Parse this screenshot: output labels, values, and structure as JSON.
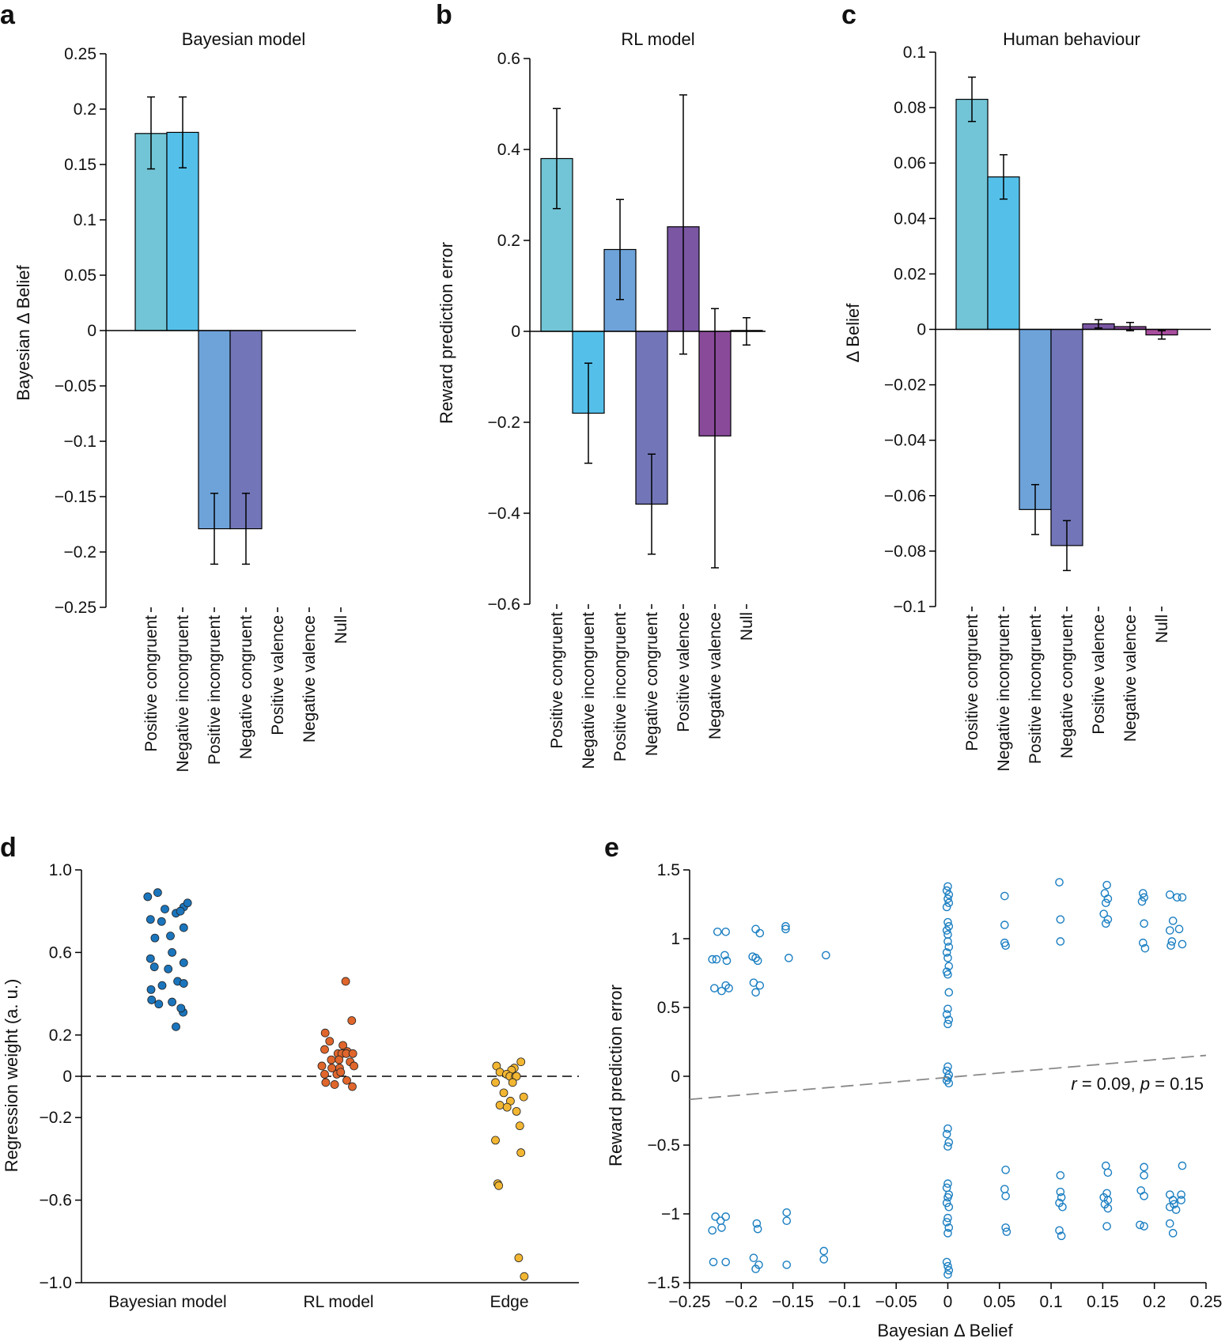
{
  "colors": {
    "positive_congruent": "#72c5d6",
    "negative_incongruent": "#54c0ea",
    "positive_incongruent": "#6ea3da",
    "negative_congruent": "#7276b8",
    "positive_valence": "#7a56a3",
    "negative_valence": "#8a4a9a",
    "null": "#a94e9e",
    "bayes_dots": "#1b75bc",
    "rl_dots": "#e0662c",
    "edge_dots": "#f2b632",
    "scatter_points": "#1b7fc2",
    "fit_line": "#888888"
  },
  "chart_data": [
    {
      "id": "a",
      "panel_label": "a",
      "type": "bar",
      "title": "Bayesian model",
      "ylabel": "Bayesian Δ Belief",
      "ylim": [
        -0.25,
        0.25
      ],
      "yticks": [
        0.25,
        0.2,
        0.15,
        0.1,
        0.05,
        0,
        -0.05,
        -0.1,
        -0.15,
        -0.2,
        -0.25
      ],
      "ytick_labels": [
        "0.25",
        "0.2",
        "0.15",
        "0.1",
        "0.05",
        "0",
        "−0.05",
        "−0.1",
        "−0.15",
        "−0.2",
        "−0.25"
      ],
      "categories": [
        "Positive congruent",
        "Negative incongruent",
        "Positive incongruent",
        "Negative congruent",
        "Positive valence",
        "Negative valence",
        "Null"
      ],
      "values": [
        0.178,
        0.179,
        -0.179,
        -0.179,
        0,
        0,
        0
      ],
      "err_low": [
        0.146,
        0.147,
        -0.211,
        -0.211,
        0,
        0,
        0
      ],
      "err_high": [
        0.211,
        0.211,
        -0.147,
        -0.147,
        0,
        0,
        0
      ]
    },
    {
      "id": "b",
      "panel_label": "b",
      "type": "bar",
      "title": "RL model",
      "ylabel": "Reward prediction error",
      "ylim": [
        -0.6,
        0.6
      ],
      "yticks": [
        0.6,
        0.4,
        0.2,
        0,
        -0.2,
        -0.4,
        -0.6
      ],
      "ytick_labels": [
        "0.6",
        "0.4",
        "0.2",
        "0",
        "−0.2",
        "−0.4",
        "−0.6"
      ],
      "categories": [
        "Positive congruent",
        "Negative incongruent",
        "Positive incongruent",
        "Negative congruent",
        "Positive valence",
        "Negative valence",
        "Null"
      ],
      "values": [
        0.38,
        -0.18,
        0.18,
        -0.38,
        0.23,
        -0.23,
        0.002
      ],
      "err_low": [
        0.27,
        -0.29,
        0.07,
        -0.49,
        -0.05,
        -0.52,
        -0.03
      ],
      "err_high": [
        0.49,
        -0.07,
        0.29,
        -0.27,
        0.52,
        0.05,
        0.03
      ]
    },
    {
      "id": "c",
      "panel_label": "c",
      "type": "bar",
      "title": "Human behaviour",
      "ylabel": "Δ Belief",
      "ylim": [
        -0.1,
        0.1
      ],
      "yticks": [
        0.1,
        0.08,
        0.06,
        0.04,
        0.02,
        0,
        -0.02,
        -0.04,
        -0.06,
        -0.08,
        -0.1
      ],
      "ytick_labels": [
        "0.1",
        "0.08",
        "0.06",
        "0.04",
        "0.02",
        "0",
        "−0.02",
        "−0.04",
        "−0.06",
        "−0.08",
        "−0.1"
      ],
      "categories": [
        "Positive congruent",
        "Negative incongruent",
        "Positive incongruent",
        "Negative congruent",
        "Positive valence",
        "Negative valence",
        "Null"
      ],
      "values": [
        0.083,
        0.055,
        -0.065,
        -0.078,
        0.002,
        0.001,
        -0.002
      ],
      "err_low": [
        0.075,
        0.047,
        -0.074,
        -0.087,
        0.0005,
        -0.0005,
        -0.0035
      ],
      "err_high": [
        0.091,
        0.063,
        -0.056,
        -0.069,
        0.0035,
        0.0025,
        -0.0005
      ]
    },
    {
      "id": "d",
      "panel_label": "d",
      "type": "scatter",
      "title": "",
      "ylabel": "Regression weight (a. u.)",
      "ylim": [
        -1.0,
        1.0
      ],
      "yticks": [
        1.0,
        0.6,
        0.2,
        0,
        -0.2,
        -0.6,
        -1.0
      ],
      "ytick_labels": [
        "1.0",
        "0.6",
        "0.2",
        "0",
        "−0.2",
        "−0.6",
        "−1.0"
      ],
      "categories": [
        "Bayesian model",
        "RL model",
        "Edge"
      ],
      "series": [
        {
          "name": "Bayesian model",
          "points": [
            [
              -0.36,
              0.87
            ],
            [
              -0.18,
              0.89
            ],
            [
              -0.05,
              0.81
            ],
            [
              0.15,
              0.79
            ],
            [
              0.29,
              0.82
            ],
            [
              0.36,
              0.84
            ],
            [
              0.23,
              0.8
            ],
            [
              -0.31,
              0.76
            ],
            [
              -0.11,
              0.75
            ],
            [
              0.29,
              0.72
            ],
            [
              -0.23,
              0.67
            ],
            [
              0.05,
              0.68
            ],
            [
              -0.31,
              0.57
            ],
            [
              0.08,
              0.6
            ],
            [
              -0.24,
              0.53
            ],
            [
              0.29,
              0.55
            ],
            [
              0.01,
              0.52
            ],
            [
              -0.3,
              0.42
            ],
            [
              0.18,
              0.46
            ],
            [
              -0.1,
              0.44
            ],
            [
              0.29,
              0.45
            ],
            [
              -0.29,
              0.37
            ],
            [
              0.08,
              0.36
            ],
            [
              -0.16,
              0.35
            ],
            [
              0.28,
              0.31
            ],
            [
              0.24,
              0.33
            ],
            [
              0.15,
              0.24
            ]
          ]
        },
        {
          "name": "RL model",
          "points": [
            [
              0.13,
              0.46
            ],
            [
              -0.24,
              0.21
            ],
            [
              0.24,
              0.27
            ],
            [
              -0.16,
              0.17
            ],
            [
              -0.25,
              0.13
            ],
            [
              0.08,
              0.15
            ],
            [
              0.16,
              0.12
            ],
            [
              -0.01,
              0.11
            ],
            [
              0.06,
              0.11
            ],
            [
              0.14,
              0.11
            ],
            [
              0.26,
              0.11
            ],
            [
              -0.13,
              0.08
            ],
            [
              0.01,
              0.08
            ],
            [
              0.21,
              0.07
            ],
            [
              -0.3,
              0.05
            ],
            [
              -0.12,
              0.04
            ],
            [
              0.02,
              0.04
            ],
            [
              0.28,
              0.05
            ],
            [
              -0.25,
              0.01
            ],
            [
              -0.03,
              0.01
            ],
            [
              0.04,
              0.02
            ],
            [
              -0.23,
              -0.03
            ],
            [
              0.15,
              -0.02
            ],
            [
              -0.07,
              -0.04
            ],
            [
              0.25,
              -0.05
            ]
          ]
        },
        {
          "name": "Edge",
          "points": [
            [
              0.21,
              0.07
            ],
            [
              -0.23,
              0.05
            ],
            [
              0.09,
              0.04
            ],
            [
              -0.17,
              0.02
            ],
            [
              0.04,
              0.03
            ],
            [
              -0.05,
              0.01
            ],
            [
              0.01,
              0.0
            ],
            [
              0.11,
              0.0
            ],
            [
              0.13,
              0.0
            ],
            [
              -0.25,
              -0.03
            ],
            [
              0.06,
              -0.03
            ],
            [
              -0.1,
              -0.08
            ],
            [
              0.26,
              -0.1
            ],
            [
              0.02,
              -0.12
            ],
            [
              -0.17,
              -0.14
            ],
            [
              0.13,
              -0.17
            ],
            [
              -0.04,
              -0.15
            ],
            [
              0.19,
              -0.24
            ],
            [
              -0.25,
              -0.31
            ],
            [
              0.21,
              -0.37
            ],
            [
              -0.21,
              -0.52
            ],
            [
              -0.19,
              -0.53
            ],
            [
              0.17,
              -0.88
            ],
            [
              0.27,
              -0.97
            ]
          ]
        }
      ],
      "zero_line": true
    },
    {
      "id": "e",
      "panel_label": "e",
      "type": "scatter",
      "title": "",
      "xlabel": "Bayesian Δ Belief",
      "ylabel": "Reward prediction error",
      "xlim": [
        -0.25,
        0.25
      ],
      "ylim": [
        -1.5,
        1.5
      ],
      "xticks": [
        -0.25,
        -0.2,
        -0.15,
        -0.1,
        -0.05,
        0,
        0.05,
        0.1,
        0.15,
        0.2,
        0.25
      ],
      "xtick_labels": [
        "−0.25",
        "−0.2",
        "−0.15",
        "−0.1",
        "−0.05",
        "0",
        "0.05",
        "0.1",
        "0.15",
        "0.2",
        "0.25"
      ],
      "yticks": [
        1.5,
        1,
        0.5,
        0,
        -0.5,
        -1,
        -1.5
      ],
      "ytick_labels": [
        "1.5",
        "1",
        "0.5",
        "0",
        "−0.5",
        "−1",
        "−1.5"
      ],
      "fit_line": {
        "slope": 0.64,
        "intercept": -0.008
      },
      "annotation": {
        "r_label": "r",
        "r_value": " = 0.09, ",
        "p_label": "p",
        "p_value": " = 0.15"
      },
      "points": [
        [
          -0.223,
          1.05
        ],
        [
          -0.215,
          1.05
        ],
        [
          -0.186,
          1.07
        ],
        [
          -0.182,
          1.04
        ],
        [
          -0.157,
          1.09
        ],
        [
          -0.157,
          1.07
        ],
        [
          -0.228,
          0.85
        ],
        [
          -0.224,
          0.85
        ],
        [
          -0.216,
          0.88
        ],
        [
          -0.214,
          0.84
        ],
        [
          -0.189,
          0.87
        ],
        [
          -0.186,
          0.86
        ],
        [
          -0.184,
          0.84
        ],
        [
          -0.154,
          0.86
        ],
        [
          -0.118,
          0.88
        ],
        [
          -0.226,
          0.64
        ],
        [
          -0.219,
          0.62
        ],
        [
          -0.215,
          0.66
        ],
        [
          -0.212,
          0.64
        ],
        [
          -0.188,
          0.68
        ],
        [
          -0.186,
          0.61
        ],
        [
          -0.182,
          0.66
        ],
        [
          0.0,
          1.38
        ],
        [
          -0.001,
          1.35
        ],
        [
          0.001,
          1.32
        ],
        [
          0.0,
          1.29
        ],
        [
          0.001,
          1.26
        ],
        [
          -0.001,
          1.23
        ],
        [
          0.0,
          1.12
        ],
        [
          0.001,
          1.09
        ],
        [
          -0.001,
          1.06
        ],
        [
          0.0,
          1.03
        ],
        [
          0.0,
          0.98
        ],
        [
          0.001,
          0.94
        ],
        [
          -0.001,
          0.9
        ],
        [
          0.0,
          0.86
        ],
        [
          0.001,
          0.8
        ],
        [
          -0.001,
          0.76
        ],
        [
          0.0,
          0.74
        ],
        [
          0.001,
          0.61
        ],
        [
          0.0,
          0.49
        ],
        [
          -0.001,
          0.45
        ],
        [
          0.001,
          0.41
        ],
        [
          0.0,
          0.38
        ],
        [
          0.0,
          0.07
        ],
        [
          -0.001,
          0.04
        ],
        [
          0.001,
          0.01
        ],
        [
          0.0,
          -0.01
        ],
        [
          -0.001,
          -0.03
        ],
        [
          0.001,
          -0.05
        ],
        [
          0.0,
          -0.38
        ],
        [
          -0.001,
          -0.42
        ],
        [
          0.001,
          -0.48
        ],
        [
          0.0,
          -0.51
        ],
        [
          0.0,
          -0.78
        ],
        [
          -0.001,
          -0.81
        ],
        [
          0.001,
          -0.86
        ],
        [
          0.0,
          -0.88
        ],
        [
          -0.001,
          -0.92
        ],
        [
          0.001,
          -0.95
        ],
        [
          0.0,
          -1.03
        ],
        [
          -0.001,
          -1.06
        ],
        [
          0.001,
          -1.1
        ],
        [
          0.0,
          -1.14
        ],
        [
          -0.001,
          -1.35
        ],
        [
          0.0,
          -1.38
        ],
        [
          0.001,
          -1.41
        ],
        [
          0.0,
          -1.44
        ],
        [
          0.055,
          1.31
        ],
        [
          0.055,
          1.1
        ],
        [
          0.055,
          0.97
        ],
        [
          0.056,
          0.95
        ],
        [
          0.108,
          1.41
        ],
        [
          0.109,
          1.14
        ],
        [
          0.109,
          0.98
        ],
        [
          0.154,
          1.39
        ],
        [
          0.152,
          1.33
        ],
        [
          0.155,
          1.29
        ],
        [
          0.153,
          1.26
        ],
        [
          0.151,
          1.18
        ],
        [
          0.155,
          1.14
        ],
        [
          0.153,
          1.11
        ],
        [
          0.189,
          1.33
        ],
        [
          0.19,
          1.3
        ],
        [
          0.188,
          1.27
        ],
        [
          0.19,
          1.11
        ],
        [
          0.189,
          0.97
        ],
        [
          0.191,
          0.93
        ],
        [
          0.215,
          1.32
        ],
        [
          0.222,
          1.3
        ],
        [
          0.227,
          1.3
        ],
        [
          0.218,
          1.13
        ],
        [
          0.224,
          1.07
        ],
        [
          0.215,
          1.06
        ],
        [
          0.217,
          0.98
        ],
        [
          0.216,
          0.95
        ],
        [
          0.227,
          0.96
        ],
        [
          -0.225,
          -1.02
        ],
        [
          -0.22,
          -1.05
        ],
        [
          -0.215,
          -1.02
        ],
        [
          -0.228,
          -1.12
        ],
        [
          -0.219,
          -1.1
        ],
        [
          -0.185,
          -1.07
        ],
        [
          -0.184,
          -1.11
        ],
        [
          -0.156,
          -0.99
        ],
        [
          -0.156,
          -1.05
        ],
        [
          -0.227,
          -1.35
        ],
        [
          -0.215,
          -1.35
        ],
        [
          -0.188,
          -1.32
        ],
        [
          -0.183,
          -1.37
        ],
        [
          -0.186,
          -1.4
        ],
        [
          -0.156,
          -1.37
        ],
        [
          -0.12,
          -1.27
        ],
        [
          -0.12,
          -1.33
        ],
        [
          0.056,
          -0.68
        ],
        [
          0.055,
          -0.82
        ],
        [
          0.056,
          -0.87
        ],
        [
          0.056,
          -1.1
        ],
        [
          0.057,
          -1.13
        ],
        [
          0.109,
          -0.72
        ],
        [
          0.109,
          -0.84
        ],
        [
          0.11,
          -0.88
        ],
        [
          0.108,
          -0.92
        ],
        [
          0.111,
          -0.95
        ],
        [
          0.108,
          -1.12
        ],
        [
          0.11,
          -1.16
        ],
        [
          0.153,
          -0.65
        ],
        [
          0.155,
          -0.7
        ],
        [
          0.154,
          -0.85
        ],
        [
          0.151,
          -0.88
        ],
        [
          0.155,
          -0.9
        ],
        [
          0.152,
          -0.93
        ],
        [
          0.155,
          -0.96
        ],
        [
          0.154,
          -1.09
        ],
        [
          0.19,
          -0.66
        ],
        [
          0.19,
          -0.72
        ],
        [
          0.187,
          -0.83
        ],
        [
          0.19,
          -0.87
        ],
        [
          0.186,
          -1.08
        ],
        [
          0.19,
          -1.09
        ],
        [
          0.215,
          -0.86
        ],
        [
          0.218,
          -0.9
        ],
        [
          0.219,
          -0.93
        ],
        [
          0.215,
          -0.95
        ],
        [
          0.221,
          -0.97
        ],
        [
          0.226,
          -0.86
        ],
        [
          0.226,
          -0.9
        ],
        [
          0.227,
          -0.65
        ],
        [
          0.215,
          -1.07
        ],
        [
          0.218,
          -1.14
        ]
      ]
    }
  ]
}
